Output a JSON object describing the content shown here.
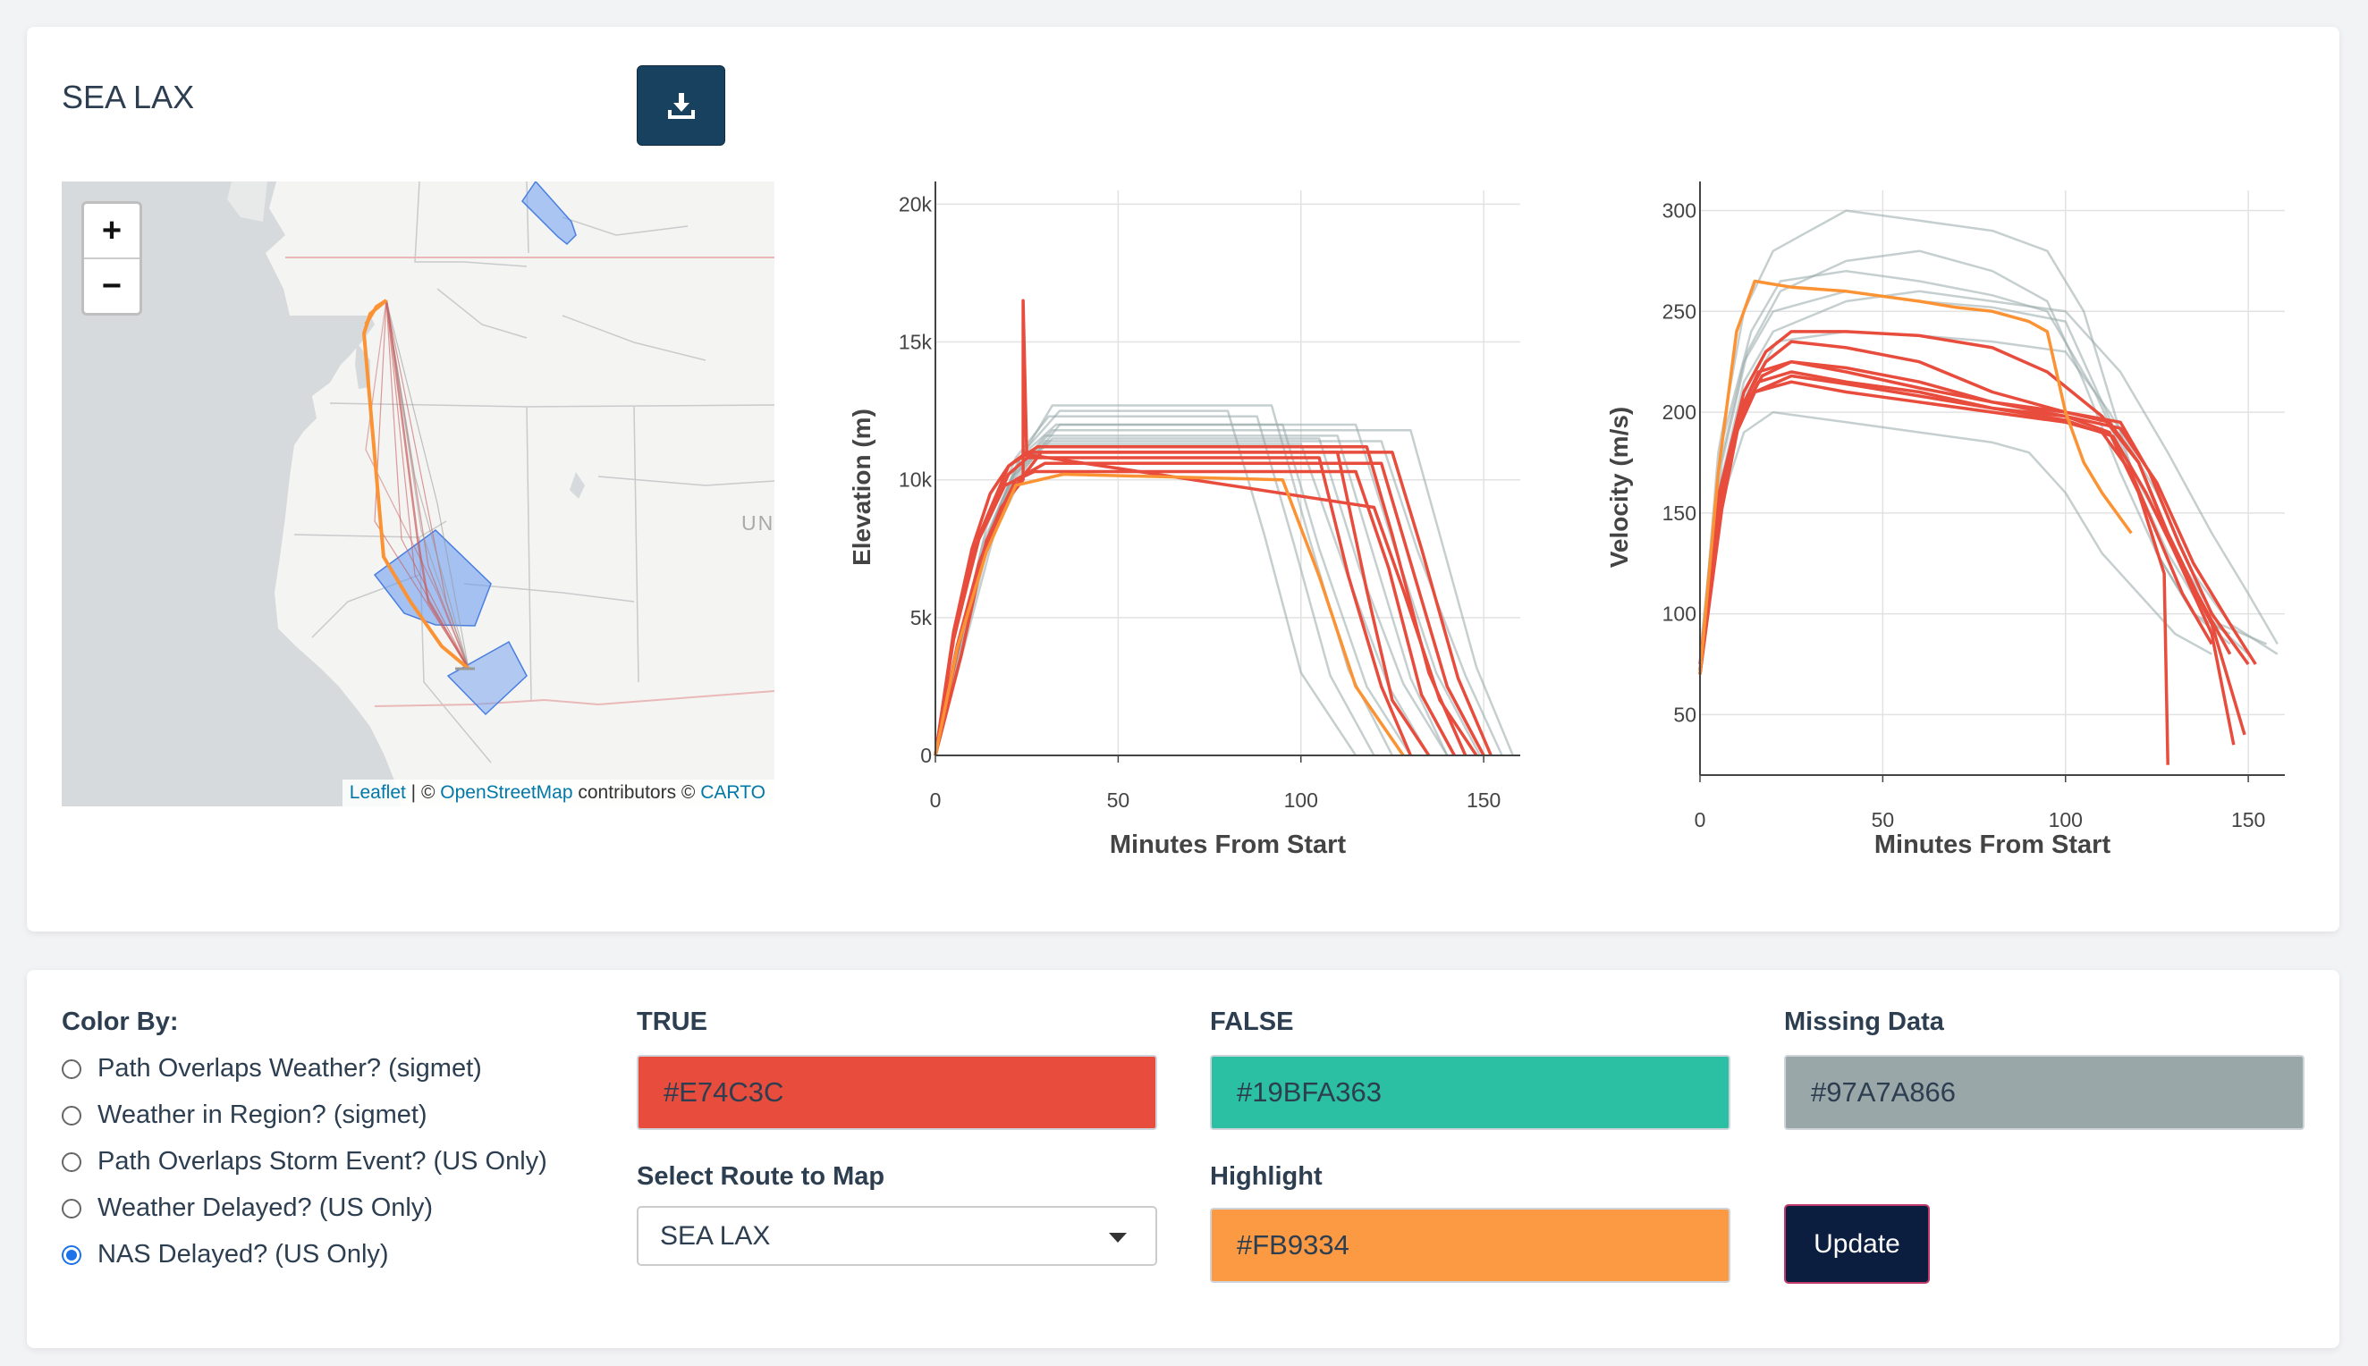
{
  "route_title": "SEA LAX",
  "map": {
    "zoom_in": "+",
    "zoom_out": "−",
    "country_label": "UN",
    "attribution": {
      "leaflet": "Leaflet",
      "separator": " | © ",
      "osm": "OpenStreetMap",
      "mid": " contributors © ",
      "carto": "CARTO"
    }
  },
  "elevation_chart": {
    "ylabel": "Elevation (m)",
    "xlabel": "Minutes From Start",
    "xticks": [
      "0",
      "50",
      "100",
      "150"
    ],
    "yticks": [
      "0",
      "5k",
      "10k",
      "15k",
      "20k"
    ]
  },
  "velocity_chart": {
    "ylabel": "Velocity (m/s)",
    "xlabel": "Minutes From Start",
    "xticks": [
      "0",
      "50",
      "100",
      "150"
    ],
    "yticks": [
      "50",
      "100",
      "150",
      "200",
      "250",
      "300"
    ]
  },
  "chart_data": [
    {
      "type": "line",
      "xlabel": "Minutes From Start",
      "ylabel": "Elevation (m)",
      "xlim": [
        0,
        160
      ],
      "ylim": [
        0,
        20500
      ],
      "grid": true,
      "series": [
        {
          "color": "#E74C3C",
          "x": [
            0,
            5,
            10,
            15,
            20,
            25,
            110,
            118,
            125,
            135
          ],
          "y": [
            0,
            4500,
            7500,
            9500,
            10500,
            11000,
            11000,
            6000,
            2000,
            0
          ]
        },
        {
          "color": "#E74C3C",
          "x": [
            0,
            6,
            12,
            18,
            24,
            24,
            25,
            105,
            113,
            122,
            130
          ],
          "y": [
            0,
            4000,
            7000,
            9000,
            10000,
            16500,
            10800,
            10800,
            6500,
            2500,
            0
          ]
        },
        {
          "color": "#E74C3C",
          "x": [
            0,
            5,
            12,
            20,
            28,
            118,
            125,
            135,
            145
          ],
          "y": [
            0,
            4200,
            8000,
            10500,
            11200,
            11200,
            8000,
            3000,
            0
          ]
        },
        {
          "color": "#E74C3C",
          "x": [
            0,
            6,
            14,
            22,
            30,
            122,
            130,
            140,
            150
          ],
          "y": [
            0,
            3800,
            7800,
            10000,
            10600,
            10600,
            7000,
            2500,
            0
          ]
        },
        {
          "color": "#E74C3C",
          "x": [
            0,
            5,
            11,
            19,
            27,
            115,
            124,
            133,
            142
          ],
          "y": [
            0,
            4400,
            7600,
            9800,
            10300,
            10300,
            6800,
            2200,
            0
          ]
        },
        {
          "color": "#E74C3C",
          "x": [
            0,
            7,
            13,
            21,
            29,
            125,
            133,
            143,
            152
          ],
          "y": [
            0,
            3600,
            7200,
            9600,
            11000,
            11000,
            7500,
            2800,
            0
          ]
        },
        {
          "color": "#E74C3C",
          "x": [
            0,
            5,
            12,
            20,
            26,
            120,
            128,
            138,
            148
          ],
          "y": [
            0,
            4300,
            7900,
            10200,
            10900,
            9000,
            6000,
            2000,
            0
          ]
        },
        {
          "color": "#FB9334",
          "x": [
            0,
            6,
            14,
            22,
            35,
            95,
            105,
            115,
            128
          ],
          "y": [
            0,
            3900,
            7400,
            9800,
            10200,
            10000,
            6500,
            2500,
            0
          ]
        },
        {
          "color": "#97A7A8",
          "x": [
            0,
            8,
            16,
            24,
            34,
            80,
            90,
            100,
            115
          ],
          "y": [
            0,
            4200,
            8500,
            11000,
            12500,
            12500,
            8000,
            3000,
            0
          ]
        },
        {
          "color": "#97A7A8",
          "x": [
            0,
            7,
            15,
            23,
            33,
            95,
            105,
            118,
            130
          ],
          "y": [
            0,
            4000,
            8200,
            10800,
            12000,
            12000,
            7500,
            2500,
            0
          ]
        },
        {
          "color": "#97A7A8",
          "x": [
            0,
            6,
            14,
            22,
            30,
            110,
            120,
            130,
            140
          ],
          "y": [
            0,
            3800,
            7800,
            10300,
            11600,
            11600,
            7200,
            2800,
            0
          ]
        },
        {
          "color": "#97A7A8",
          "x": [
            0,
            7,
            15,
            24,
            32,
            130,
            138,
            148,
            158
          ],
          "y": [
            0,
            4100,
            8100,
            10600,
            11800,
            11800,
            8000,
            3200,
            0
          ]
        },
        {
          "color": "#97A7A8",
          "x": [
            0,
            6,
            13,
            21,
            30,
            100,
            112,
            124,
            135
          ],
          "y": [
            0,
            3700,
            7700,
            10100,
            11300,
            11300,
            6800,
            2500,
            0
          ]
        },
        {
          "color": "#97A7A8",
          "x": [
            0,
            7,
            14,
            22,
            31,
            88,
            98,
            108,
            120
          ],
          "y": [
            0,
            4300,
            8300,
            10800,
            12300,
            12300,
            7700,
            2900,
            0
          ]
        },
        {
          "color": "#97A7A8",
          "x": [
            0,
            6,
            15,
            24,
            32,
            105,
            116,
            128,
            140
          ],
          "y": [
            0,
            3900,
            7900,
            10400,
            11500,
            11500,
            6800,
            2600,
            0
          ]
        },
        {
          "color": "#97A7A8",
          "x": [
            0,
            8,
            16,
            25,
            34,
            115,
            125,
            137,
            149
          ],
          "y": [
            0,
            4000,
            8000,
            10500,
            12000,
            12000,
            7800,
            3000,
            0
          ]
        },
        {
          "color": "#97A7A8",
          "x": [
            0,
            6,
            14,
            22,
            30,
            122,
            132,
            145,
            155
          ],
          "y": [
            0,
            3800,
            7700,
            10200,
            11400,
            11400,
            7400,
            2900,
            0
          ]
        },
        {
          "color": "#97A7A8",
          "x": [
            0,
            7,
            15,
            23,
            32,
            92,
            102,
            113,
            125
          ],
          "y": [
            0,
            4200,
            8200,
            10700,
            12700,
            12700,
            8000,
            3100,
            0
          ]
        }
      ]
    },
    {
      "type": "line",
      "xlabel": "Minutes From Start",
      "ylabel": "Velocity (m/s)",
      "xlim": [
        0,
        160
      ],
      "ylim": [
        20,
        310
      ],
      "grid": true,
      "series": [
        {
          "color": "#97A7A8",
          "x": [
            0,
            5,
            12,
            20,
            40,
            60,
            80,
            95,
            105,
            115,
            125,
            135,
            145
          ],
          "y": [
            70,
            180,
            250,
            280,
            300,
            295,
            290,
            280,
            250,
            190,
            130,
            100,
            90
          ]
        },
        {
          "color": "#97A7A8",
          "x": [
            0,
            6,
            14,
            22,
            40,
            60,
            80,
            95,
            108,
            118,
            128,
            138,
            150
          ],
          "y": [
            80,
            185,
            240,
            265,
            270,
            265,
            258,
            250,
            210,
            170,
            130,
            100,
            80
          ]
        },
        {
          "color": "#97A7A8",
          "x": [
            0,
            5,
            12,
            20,
            40,
            60,
            80,
            100,
            110,
            120,
            132,
            142,
            155
          ],
          "y": [
            75,
            170,
            225,
            250,
            260,
            255,
            252,
            245,
            205,
            165,
            125,
            95,
            85
          ]
        },
        {
          "color": "#97A7A8",
          "x": [
            0,
            6,
            13,
            21,
            40,
            60,
            80,
            100,
            112,
            125,
            135,
            145,
            158
          ],
          "y": [
            70,
            165,
            210,
            235,
            240,
            238,
            235,
            230,
            200,
            160,
            120,
            95,
            80
          ]
        },
        {
          "color": "#97A7A8",
          "x": [
            0,
            5,
            12,
            20,
            40,
            60,
            80,
            90,
            100,
            110,
            120,
            130,
            140
          ],
          "y": [
            70,
            150,
            190,
            200,
            195,
            190,
            185,
            180,
            160,
            130,
            110,
            90,
            80
          ]
        },
        {
          "color": "#97A7A8",
          "x": [
            0,
            5,
            12,
            20,
            40,
            60,
            80,
            100,
            115,
            128,
            140,
            150,
            158
          ],
          "y": [
            70,
            160,
            215,
            240,
            255,
            260,
            255,
            250,
            220,
            180,
            140,
            110,
            85
          ]
        },
        {
          "color": "#97A7A8",
          "x": [
            0,
            6,
            13,
            22,
            40,
            60,
            80,
            95,
            105,
            115,
            125,
            135,
            145
          ],
          "y": [
            75,
            175,
            230,
            260,
            275,
            280,
            270,
            255,
            215,
            170,
            130,
            100,
            85
          ]
        },
        {
          "color": "#E74C3C",
          "x": [
            0,
            5,
            10,
            15,
            25,
            40,
            60,
            80,
            100,
            110,
            118,
            125,
            132,
            140
          ],
          "y": [
            70,
            150,
            190,
            210,
            215,
            210,
            205,
            200,
            195,
            190,
            170,
            140,
            110,
            85
          ]
        },
        {
          "color": "#E74C3C",
          "x": [
            0,
            5,
            11,
            16,
            25,
            40,
            60,
            80,
            100,
            112,
            120,
            128,
            136,
            145
          ],
          "y": [
            75,
            155,
            200,
            220,
            225,
            222,
            215,
            205,
            200,
            195,
            175,
            140,
            110,
            80
          ]
        },
        {
          "color": "#E74C3C",
          "x": [
            0,
            6,
            12,
            18,
            25,
            40,
            60,
            80,
            100,
            115,
            123,
            131,
            140,
            150
          ],
          "y": [
            70,
            160,
            205,
            225,
            235,
            232,
            225,
            210,
            200,
            195,
            170,
            135,
            100,
            75
          ]
        },
        {
          "color": "#E74C3C",
          "x": [
            0,
            5,
            10,
            16,
            25,
            40,
            60,
            80,
            100,
            112,
            120,
            127,
            128
          ],
          "y": [
            72,
            150,
            195,
            215,
            220,
            215,
            210,
            202,
            198,
            190,
            160,
            120,
            25
          ]
        },
        {
          "color": "#E74C3C",
          "x": [
            0,
            5,
            12,
            18,
            25,
            40,
            60,
            80,
            95,
            110,
            120,
            130,
            140,
            146
          ],
          "y": [
            70,
            158,
            210,
            230,
            240,
            240,
            238,
            232,
            220,
            198,
            175,
            130,
            90,
            35
          ]
        },
        {
          "color": "#E74C3C",
          "x": [
            0,
            6,
            11,
            17,
            25,
            40,
            60,
            80,
            100,
            115,
            125,
            135,
            145,
            152
          ],
          "y": [
            70,
            152,
            198,
            218,
            225,
            220,
            212,
            205,
            198,
            192,
            165,
            125,
            95,
            75
          ]
        },
        {
          "color": "#E74C3C",
          "x": [
            0,
            5,
            10,
            15,
            25,
            40,
            60,
            80,
            100,
            113,
            122,
            130,
            140,
            149
          ],
          "y": [
            70,
            148,
            192,
            210,
            218,
            214,
            208,
            202,
            196,
            188,
            160,
            130,
            95,
            40
          ]
        },
        {
          "color": "#FB9334",
          "x": [
            0,
            5,
            10,
            15,
            25,
            40,
            60,
            70,
            80,
            90,
            95,
            100,
            105,
            110,
            118
          ],
          "y": [
            70,
            170,
            240,
            265,
            262,
            260,
            255,
            252,
            250,
            245,
            240,
            200,
            175,
            160,
            140
          ]
        }
      ]
    }
  ],
  "controls": {
    "color_by_label": "Color By:",
    "options": [
      {
        "label": "Path Overlaps Weather? (sigmet)",
        "checked": false
      },
      {
        "label": "Weather in Region? (sigmet)",
        "checked": false
      },
      {
        "label": "Path Overlaps Storm Event? (US Only)",
        "checked": false
      },
      {
        "label": "Weather Delayed? (US Only)",
        "checked": false
      },
      {
        "label": "NAS Delayed? (US Only)",
        "checked": true
      }
    ],
    "true_label": "TRUE",
    "true_value": "#E74C3C",
    "false_label": "FALSE",
    "false_value": "#19BFA363",
    "missing_label": "Missing Data",
    "missing_value": "#97A7A866",
    "route_label": "Select Route to Map",
    "route_value": "SEA LAX",
    "highlight_label": "Highlight",
    "highlight_value": "#FB9334",
    "update_label": "Update"
  },
  "colors": {
    "true": "#E74C3C",
    "false": "#19BFA3",
    "missing": "#97A7A8",
    "highlight": "#FB9334",
    "button": "#17415f",
    "update_button": "#0b1e3f"
  },
  "icons": {
    "download": "download-icon",
    "caret": "caret-down-icon"
  }
}
